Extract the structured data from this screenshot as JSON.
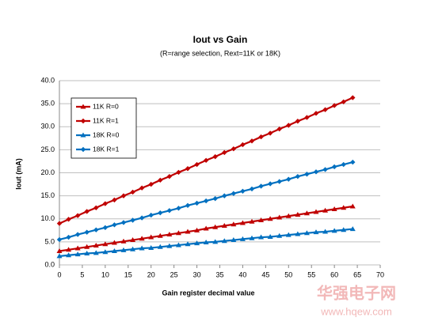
{
  "chart_data": {
    "type": "line",
    "title": "Iout vs Gain",
    "subtitle": "(R=range selection, Rext=11K or 18K)",
    "x_label": "Gain register decimal value",
    "y_label": "Iout (mA)",
    "watermark": "华强电子网",
    "watermark_url": "www.hqew.com",
    "x": [
      0,
      2,
      4,
      6,
      8,
      10,
      12,
      14,
      16,
      18,
      20,
      22,
      24,
      26,
      28,
      30,
      32,
      34,
      36,
      38,
      40,
      42,
      44,
      46,
      48,
      50,
      52,
      54,
      56,
      58,
      60,
      62,
      64
    ],
    "series": [
      {
        "name": "11K R=0",
        "color": "#c00000",
        "marker": "triangle",
        "values": [
          3.0,
          3.3,
          3.6,
          3.9,
          4.2,
          4.5,
          4.8,
          5.1,
          5.4,
          5.7,
          6.0,
          6.3,
          6.6,
          6.9,
          7.2,
          7.5,
          7.9,
          8.2,
          8.5,
          8.8,
          9.1,
          9.4,
          9.7,
          10.0,
          10.3,
          10.6,
          10.9,
          11.2,
          11.5,
          11.8,
          12.1,
          12.4,
          12.7
        ]
      },
      {
        "name": "11K R=1",
        "color": "#c00000",
        "marker": "diamond",
        "values": [
          9.0,
          9.9,
          10.7,
          11.6,
          12.4,
          13.3,
          14.1,
          15.0,
          15.8,
          16.7,
          17.5,
          18.4,
          19.2,
          20.1,
          20.9,
          21.8,
          22.7,
          23.5,
          24.4,
          25.2,
          26.1,
          26.9,
          27.8,
          28.6,
          29.5,
          30.3,
          31.2,
          32.0,
          32.9,
          33.7,
          34.6,
          35.4,
          36.3
        ]
      },
      {
        "name": "18K R=0",
        "color": "#0070c0",
        "marker": "triangle",
        "values": [
          1.9,
          2.1,
          2.3,
          2.5,
          2.6,
          2.8,
          3.0,
          3.2,
          3.4,
          3.6,
          3.7,
          3.9,
          4.1,
          4.3,
          4.5,
          4.7,
          4.9,
          5.0,
          5.2,
          5.4,
          5.6,
          5.8,
          6.0,
          6.1,
          6.3,
          6.5,
          6.7,
          6.9,
          7.1,
          7.2,
          7.4,
          7.6,
          7.8
        ]
      },
      {
        "name": "18K R=1",
        "color": "#0070c0",
        "marker": "diamond",
        "values": [
          5.5,
          6.0,
          6.6,
          7.1,
          7.6,
          8.1,
          8.7,
          9.2,
          9.7,
          10.2,
          10.8,
          11.3,
          11.8,
          12.3,
          12.9,
          13.4,
          13.9,
          14.4,
          15.0,
          15.5,
          16.0,
          16.5,
          17.1,
          17.6,
          18.1,
          18.6,
          19.2,
          19.7,
          20.2,
          20.7,
          21.3,
          21.8,
          22.3
        ]
      }
    ],
    "xlim": [
      0,
      70
    ],
    "xticks": [
      0,
      5,
      10,
      15,
      20,
      25,
      30,
      35,
      40,
      45,
      50,
      55,
      60,
      65,
      70
    ],
    "ylim": [
      0,
      40
    ],
    "yticks": [
      {
        "value": 0,
        "label": "0.0"
      },
      {
        "value": 5,
        "label": "5.0"
      },
      {
        "value": 10,
        "label": "10.0"
      },
      {
        "value": 15,
        "label": "15.0"
      },
      {
        "value": 20,
        "label": "20.0"
      },
      {
        "value": 25,
        "label": "25.0"
      },
      {
        "value": 30,
        "label": "30.0"
      },
      {
        "value": 35,
        "label": "35.0"
      },
      {
        "value": 40,
        "label": "40.0"
      }
    ],
    "grid": true,
    "legend": "upper-left"
  }
}
